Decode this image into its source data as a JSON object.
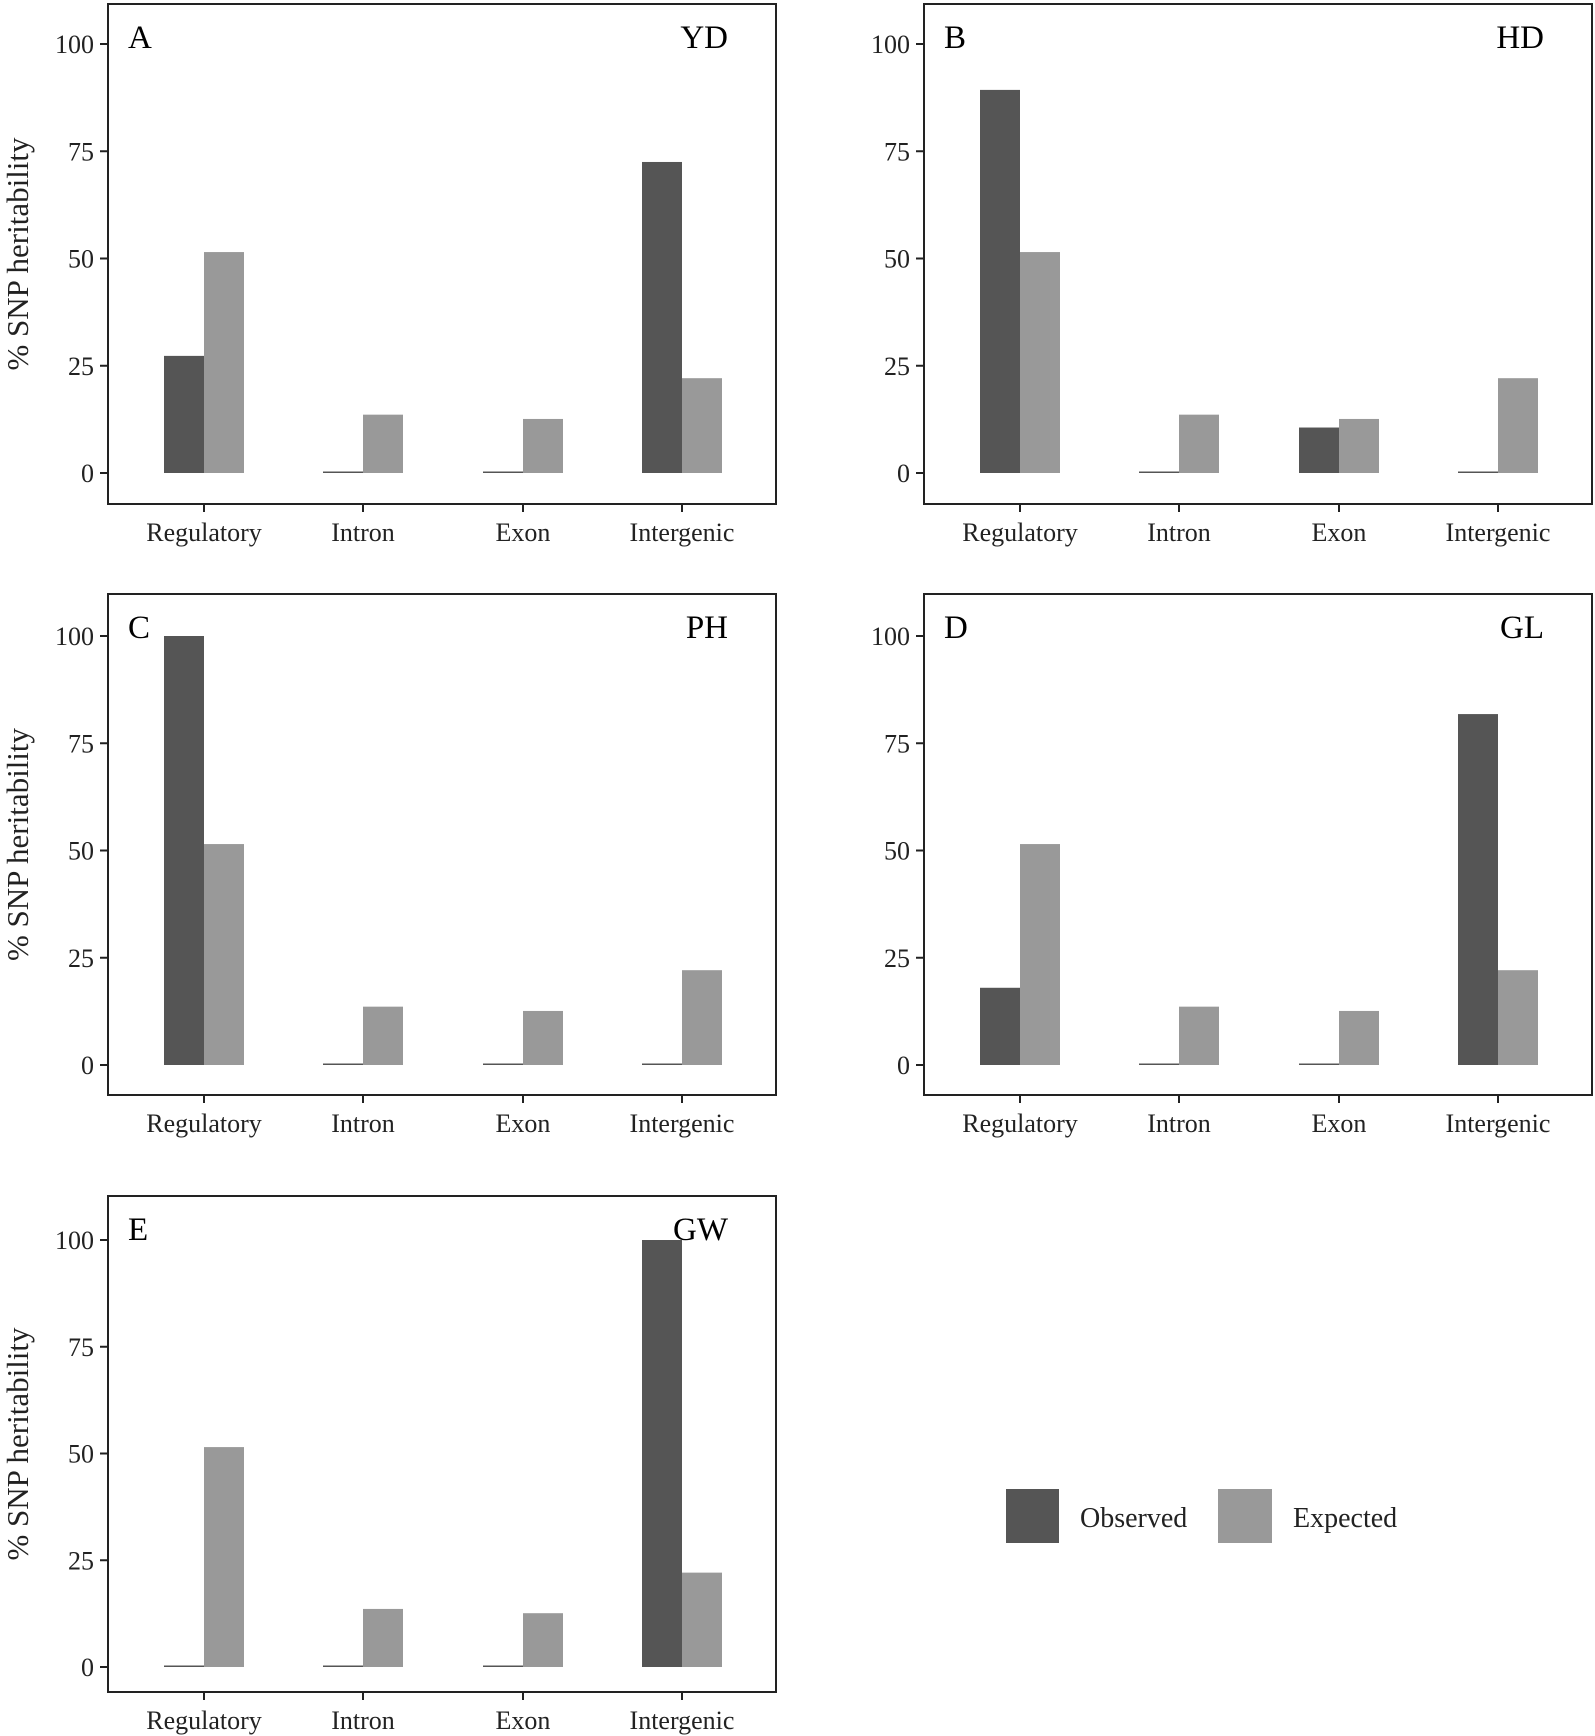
{
  "chart_data": [
    {
      "type": "bar",
      "panel": "A",
      "trait": "YD",
      "ylabel": "% SNP heritability",
      "categories": [
        "Regulatory",
        "Intron",
        "Exon",
        "Intergenic"
      ],
      "ylim": [
        0,
        110
      ],
      "yticks": [
        0,
        25,
        50,
        75,
        100
      ],
      "series": [
        {
          "name": "Observed",
          "values": [
            27.3,
            0.3,
            0.3,
            72.5
          ]
        },
        {
          "name": "Expected",
          "values": [
            51.5,
            13.6,
            12.6,
            22.1
          ]
        }
      ]
    },
    {
      "type": "bar",
      "panel": "B",
      "trait": "HD",
      "categories": [
        "Regulatory",
        "Intron",
        "Exon",
        "Intergenic"
      ],
      "ylim": [
        0,
        110
      ],
      "yticks": [
        0,
        25,
        50,
        75,
        100
      ],
      "series": [
        {
          "name": "Observed",
          "values": [
            89.3,
            0.3,
            10.6,
            0.3
          ]
        },
        {
          "name": "Expected",
          "values": [
            51.5,
            13.6,
            12.6,
            22.1
          ]
        }
      ]
    },
    {
      "type": "bar",
      "panel": "C",
      "trait": "PH",
      "ylabel": "% SNP heritability",
      "categories": [
        "Regulatory",
        "Intron",
        "Exon",
        "Intergenic"
      ],
      "ylim": [
        0,
        110
      ],
      "yticks": [
        0,
        25,
        50,
        75,
        100
      ],
      "series": [
        {
          "name": "Observed",
          "values": [
            100,
            0.3,
            0.3,
            0.3
          ]
        },
        {
          "name": "Expected",
          "values": [
            51.5,
            13.6,
            12.6,
            22.1
          ]
        }
      ]
    },
    {
      "type": "bar",
      "panel": "D",
      "trait": "GL",
      "categories": [
        "Regulatory",
        "Intron",
        "Exon",
        "Intergenic"
      ],
      "ylim": [
        0,
        110
      ],
      "yticks": [
        0,
        25,
        50,
        75,
        100
      ],
      "series": [
        {
          "name": "Observed",
          "values": [
            18,
            0.3,
            0.3,
            81.8
          ]
        },
        {
          "name": "Expected",
          "values": [
            51.5,
            13.6,
            12.6,
            22.1
          ]
        }
      ]
    },
    {
      "type": "bar",
      "panel": "E",
      "trait": "GW",
      "ylabel": "% SNP heritability",
      "categories": [
        "Regulatory",
        "Intron",
        "Exon",
        "Intergenic"
      ],
      "ylim": [
        0,
        110
      ],
      "yticks": [
        0,
        25,
        50,
        75,
        100
      ],
      "series": [
        {
          "name": "Observed",
          "values": [
            0.3,
            0.3,
            0.3,
            100
          ]
        },
        {
          "name": "Expected",
          "values": [
            51.5,
            13.6,
            12.6,
            22.1
          ]
        }
      ]
    }
  ],
  "legend": {
    "placement": "bottom-right",
    "items": [
      {
        "label": "Observed",
        "color": "#555555"
      },
      {
        "label": "Expected",
        "color": "#999999"
      }
    ]
  },
  "colors": {
    "observed": "#555555",
    "expected": "#999999"
  }
}
